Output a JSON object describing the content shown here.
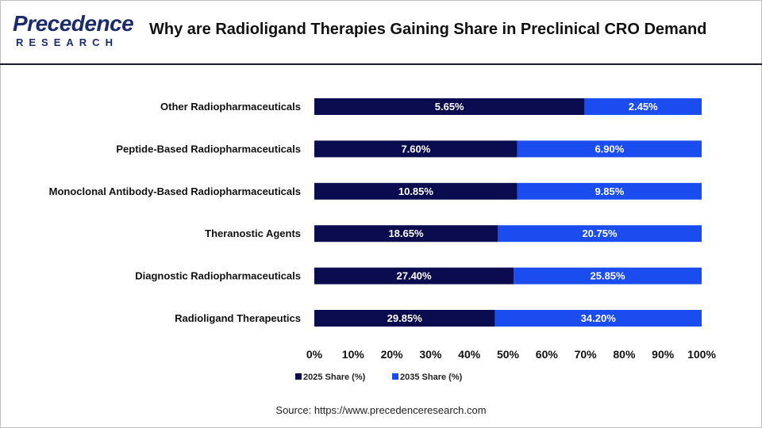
{
  "header": {
    "logo_text": "Precedence",
    "logo_sub": "RESEARCH",
    "title": "Why are Radioligand Therapies Gaining Share in Preclinical CRO Demand"
  },
  "source": "Source: https://www.precedenceresearch.com",
  "colors": {
    "series_2025": "#0b0b4f",
    "series_2035": "#1a4cf0",
    "logo": "#1b2a6b"
  },
  "chart_data": {
    "type": "bar",
    "orientation": "horizontal",
    "stacking": "percent",
    "categories": [
      "Other Radiopharmaceuticals",
      "Peptide-Based Radiopharmaceuticals",
      "Monoclonal Antibody-Based Radiopharmaceuticals",
      "Theranostic Agents",
      "Diagnostic Radiopharmaceuticals",
      "Radioligand Therapeutics"
    ],
    "series": [
      {
        "name": "2025 Share (%)",
        "values": [
          5.65,
          7.6,
          10.85,
          18.65,
          27.4,
          29.85
        ],
        "labels": [
          "5.65%",
          "7.60%",
          "10.85%",
          "18.65%",
          "27.40%",
          "29.85%"
        ]
      },
      {
        "name": "2035 Share (%)",
        "values": [
          2.45,
          6.9,
          9.85,
          20.75,
          25.85,
          34.2
        ],
        "labels": [
          "2.45%",
          "6.90%",
          "9.85%",
          "20.75%",
          "25.85%",
          "34.20%"
        ]
      }
    ],
    "xticks": [
      "0%",
      "10%",
      "20%",
      "30%",
      "40%",
      "50%",
      "60%",
      "70%",
      "80%",
      "90%",
      "100%"
    ],
    "xlim": [
      0,
      100
    ],
    "grid": false,
    "legend": "bottom-left"
  }
}
